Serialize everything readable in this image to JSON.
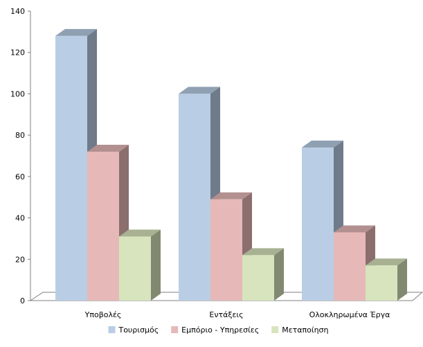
{
  "chart_data": {
    "type": "bar",
    "variant": "3d-clustered-column",
    "categories": [
      "Υποβολές",
      "Εντάξεις",
      "Ολοκληρωμένα Έργα"
    ],
    "series": [
      {
        "name": "Τουρισμός",
        "values": [
          128,
          100,
          74
        ],
        "color": "#b9cde5"
      },
      {
        "name": "Εμπόριο - Υπηρεσίες",
        "values": [
          72,
          49,
          33
        ],
        "color": "#e6b9b8"
      },
      {
        "name": "Μεταποίηση",
        "values": [
          31,
          22,
          17
        ],
        "color": "#d7e4bd"
      }
    ],
    "ylim": [
      0,
      140
    ],
    "yticks": [
      "0",
      "20",
      "40",
      "60",
      "80",
      "100",
      "120",
      "140"
    ],
    "grid": false,
    "legend": "bottom"
  }
}
